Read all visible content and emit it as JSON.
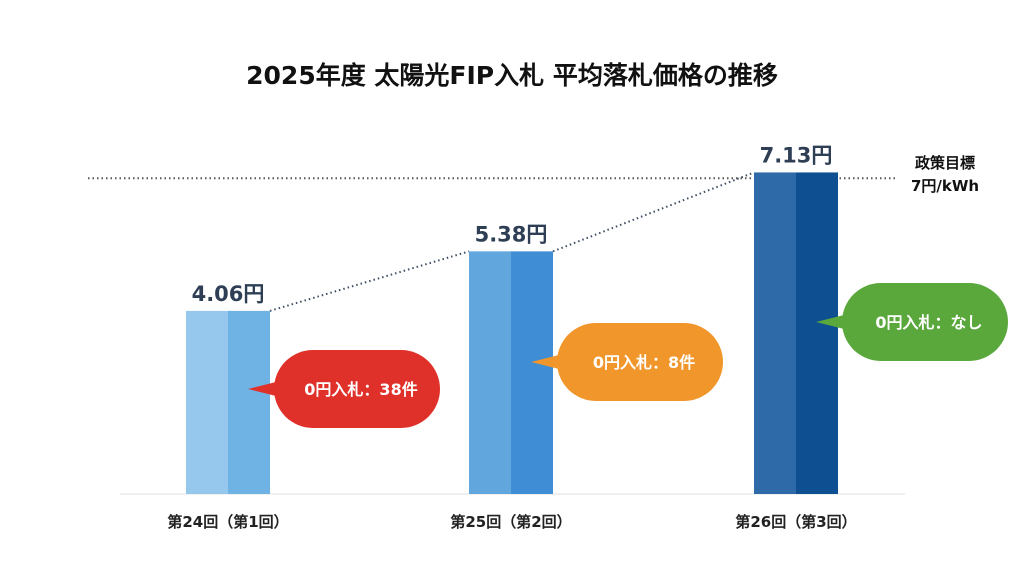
{
  "chart_data": {
    "type": "bar",
    "title": "2025年度 太陽光FIP入札 平均落札価格の推移",
    "categories": [
      "第24回（第1回）",
      "第25回（第2回）",
      "第26回（第3回）"
    ],
    "values": [
      4.06,
      5.38,
      7.13
    ],
    "value_labels": [
      "4.06円",
      "5.38円",
      "7.13円"
    ],
    "unit": "円",
    "ylim": [
      0,
      7.8
    ],
    "grid": false,
    "reference_line": {
      "value": 7,
      "label_line1": "政策目標",
      "label_line2": "7円/kWh",
      "style": "dotted"
    },
    "trend_line": {
      "style": "dotted"
    },
    "callouts": [
      {
        "text": "0円入札：38件",
        "color": "#e0302a"
      },
      {
        "text": "0円入札：8件",
        "color": "#f0962a"
      },
      {
        "text": "0円入札：なし",
        "color": "#5aa83c"
      }
    ],
    "bar_colors": [
      [
        "#95c8ec",
        "#6fb3e4"
      ],
      [
        "#62a6de",
        "#3f8dd4"
      ],
      [
        "#2f6aa8",
        "#0e4f92"
      ]
    ]
  }
}
